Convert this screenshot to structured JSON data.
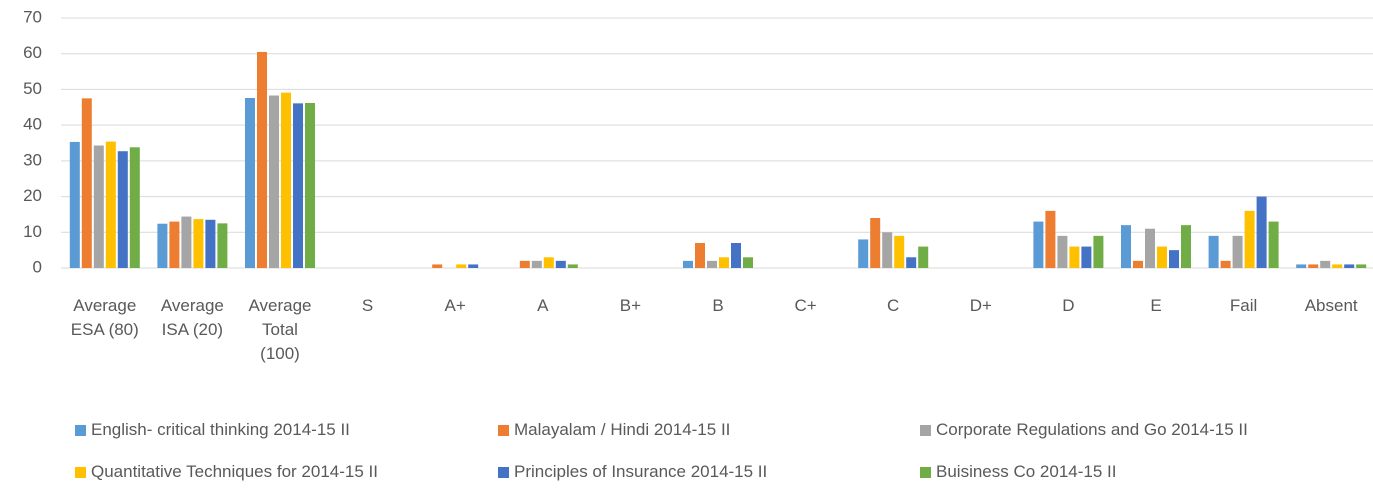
{
  "chart_data": {
    "type": "bar",
    "categories": [
      "Average ESA (80)",
      "Average ISA (20)",
      "Average Total (100)",
      "S",
      "A+",
      "A",
      "B+",
      "B",
      "C+",
      "C",
      "D+",
      "D",
      "E",
      "Fail",
      "Absent"
    ],
    "series": [
      {
        "name": "English- critical thinking 2014-15 II",
        "color": "#5b9bd5",
        "values": [
          35.3,
          12.4,
          47.6,
          0,
          0,
          0,
          0,
          2,
          0,
          8,
          0,
          13,
          12,
          9,
          1
        ]
      },
      {
        "name": "Malayalam / Hindi 2014-15 II",
        "color": "#ed7d31",
        "values": [
          47.5,
          13.0,
          60.5,
          0,
          1,
          2,
          0,
          7,
          0,
          14,
          0,
          16,
          2,
          2,
          1
        ]
      },
      {
        "name": "Corporate Regulations and Go 2014-15 II",
        "color": "#a5a5a5",
        "values": [
          34.3,
          14.4,
          48.3,
          0,
          0,
          2,
          0,
          2,
          0,
          10,
          0,
          9,
          11,
          9,
          2
        ]
      },
      {
        "name": "Quantitative Techniques for 2014-15 II",
        "color": "#ffc000",
        "values": [
          35.4,
          13.7,
          49.1,
          0,
          1,
          3,
          0,
          3,
          0,
          9,
          0,
          6,
          6,
          16,
          1
        ]
      },
      {
        "name": "Principles of Insurance 2014-15 II",
        "color": "#4472c4",
        "values": [
          32.7,
          13.5,
          46.1,
          0,
          1,
          2,
          0,
          7,
          0,
          3,
          0,
          6,
          5,
          20,
          1
        ]
      },
      {
        "name": "Buisiness Co 2014-15 II",
        "color": "#70ad47",
        "values": [
          33.8,
          12.5,
          46.2,
          0,
          0,
          1,
          0,
          3,
          0,
          6,
          0,
          9,
          12,
          13,
          1
        ]
      }
    ],
    "ylim": [
      0,
      70
    ],
    "yticks": [
      0,
      10,
      20,
      30,
      40,
      50,
      60,
      70
    ],
    "grid": true,
    "legend": "bottom"
  }
}
